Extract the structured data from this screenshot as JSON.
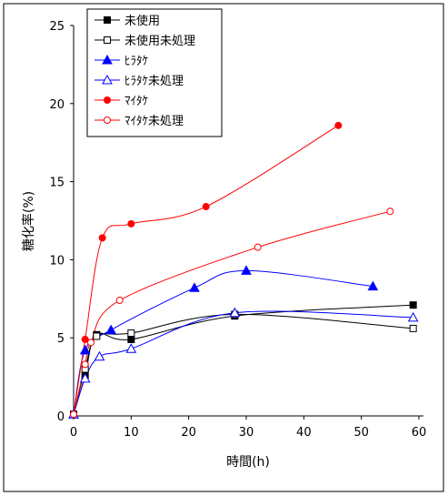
{
  "chart_data": {
    "type": "line",
    "title": "",
    "xlabel": "時間(h)",
    "ylabel": "糖化率(%)",
    "xlim": [
      0,
      60
    ],
    "ylim": [
      0,
      25
    ],
    "x_ticks": [
      "0",
      "10",
      "20",
      "30",
      "40",
      "50",
      "60"
    ],
    "y_ticks": [
      "0",
      "5",
      "10",
      "15",
      "20",
      "25"
    ],
    "grid": false,
    "legend_position": "top-left",
    "series": [
      {
        "name": "未使用",
        "color": "#000000",
        "marker": "square-filled",
        "x": [
          0,
          2,
          4,
          10,
          28,
          59
        ],
        "y": [
          0.1,
          2.6,
          5.2,
          4.9,
          6.4,
          7.1
        ]
      },
      {
        "name": "未使用未処理",
        "color": "#000000",
        "marker": "square-open",
        "x": [
          0,
          2,
          4,
          10,
          28,
          59
        ],
        "y": [
          0.1,
          3.0,
          5.1,
          5.3,
          6.5,
          5.6
        ]
      },
      {
        "name": "ﾋﾗﾀｹ",
        "color": "#0000ff",
        "marker": "triangle-filled",
        "x": [
          0,
          2,
          6.5,
          21,
          30,
          52
        ],
        "y": [
          0.1,
          4.2,
          5.5,
          8.2,
          9.3,
          8.3
        ]
      },
      {
        "name": "ﾋﾗﾀｹ未処理",
        "color": "#0000ff",
        "marker": "triangle-open",
        "x": [
          0,
          2,
          4.5,
          10,
          28,
          59
        ],
        "y": [
          0.1,
          2.4,
          3.8,
          4.3,
          6.6,
          6.3
        ]
      },
      {
        "name": "ﾏｲﾀｹ",
        "color": "#ff0000",
        "marker": "circle-filled",
        "x": [
          0,
          2,
          5,
          10,
          23,
          46
        ],
        "y": [
          0.1,
          4.9,
          11.4,
          12.3,
          13.4,
          18.6
        ]
      },
      {
        "name": "ﾏｲﾀｹ未処理",
        "color": "#ff0000",
        "marker": "circle-open",
        "x": [
          0,
          2,
          3,
          8,
          32,
          55
        ],
        "y": [
          0.1,
          3.3,
          4.7,
          7.4,
          10.8,
          13.1
        ]
      }
    ]
  }
}
